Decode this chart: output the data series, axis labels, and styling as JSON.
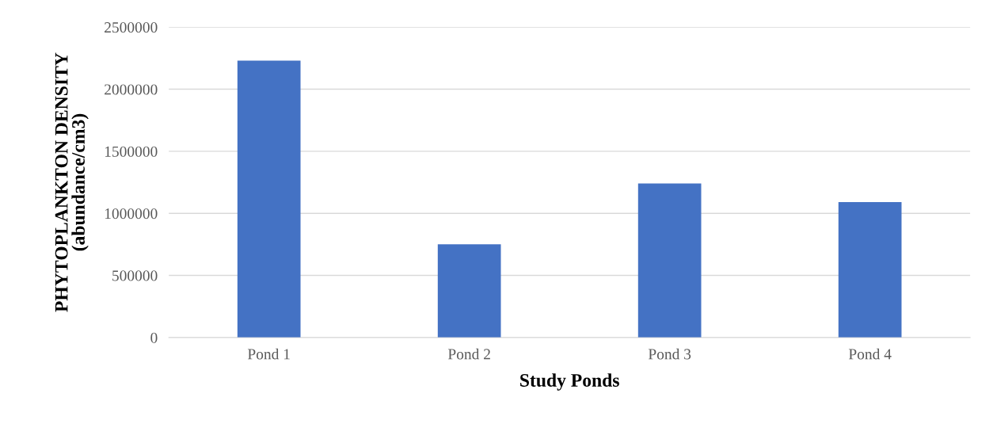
{
  "chart_data": {
    "type": "bar",
    "xlabel": "Study Ponds",
    "ylabel": "PHYTOPLANKTON DENSITY\n(abundance/cm3)",
    "categories": [
      "Pond 1",
      "Pond 2",
      "Pond 3",
      "Pond 4"
    ],
    "values": [
      2230000,
      750000,
      1240000,
      1090000
    ],
    "color": "#4472c4",
    "ylim": [
      0,
      2500000
    ],
    "yticks": [
      0,
      500000,
      1000000,
      1500000,
      2000000,
      2500000
    ],
    "grid": "y",
    "legend": false
  }
}
